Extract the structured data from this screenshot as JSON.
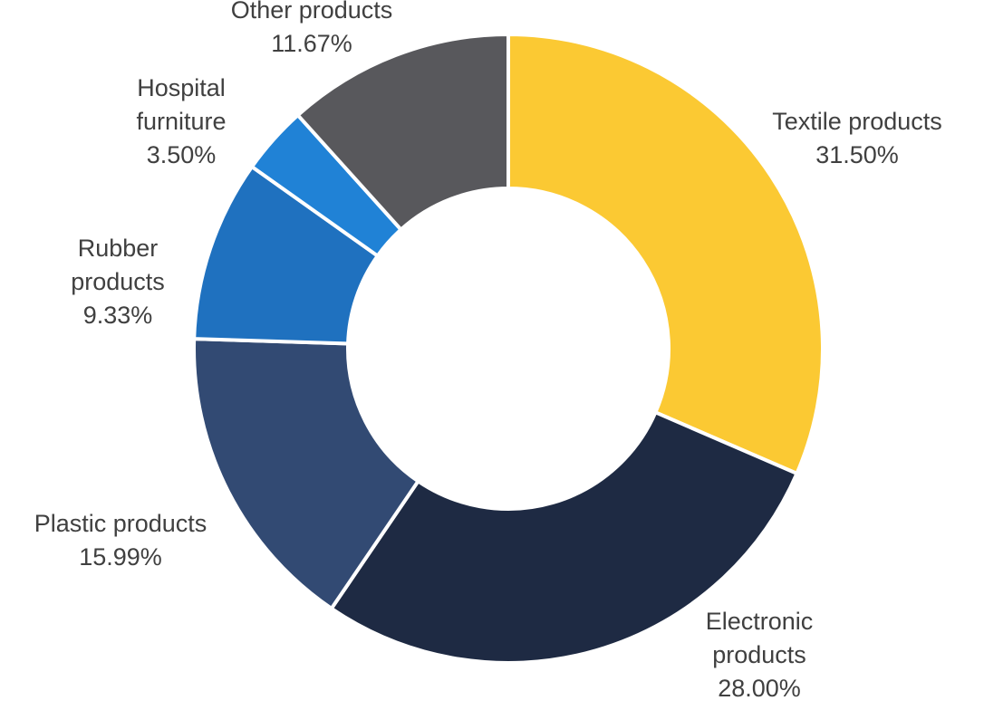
{
  "chart_data": {
    "type": "pie",
    "variant": "donut",
    "title": "",
    "start_angle_deg": 0,
    "direction": "clockwise",
    "legend": "none",
    "slices": [
      {
        "label_lines": [
          "Textile products"
        ],
        "value_label": "31.50%",
        "value": 31.5,
        "color": "#FBC933"
      },
      {
        "label_lines": [
          "Electronic",
          "products"
        ],
        "value_label": "28.00%",
        "value": 28.0,
        "color": "#1E2A43"
      },
      {
        "label_lines": [
          "Plastic products"
        ],
        "value_label": "15.99%",
        "value": 15.99,
        "color": "#324A73"
      },
      {
        "label_lines": [
          "Rubber",
          "products"
        ],
        "value_label": "9.33%",
        "value": 9.33,
        "color": "#1F71BF"
      },
      {
        "label_lines": [
          "Hospital",
          "furniture"
        ],
        "value_label": "3.50%",
        "value": 3.5,
        "color": "#2082D6"
      },
      {
        "label_lines": [
          "Other products"
        ],
        "value_label": "11.67%",
        "value": 11.67,
        "color": "#58585C"
      }
    ]
  }
}
